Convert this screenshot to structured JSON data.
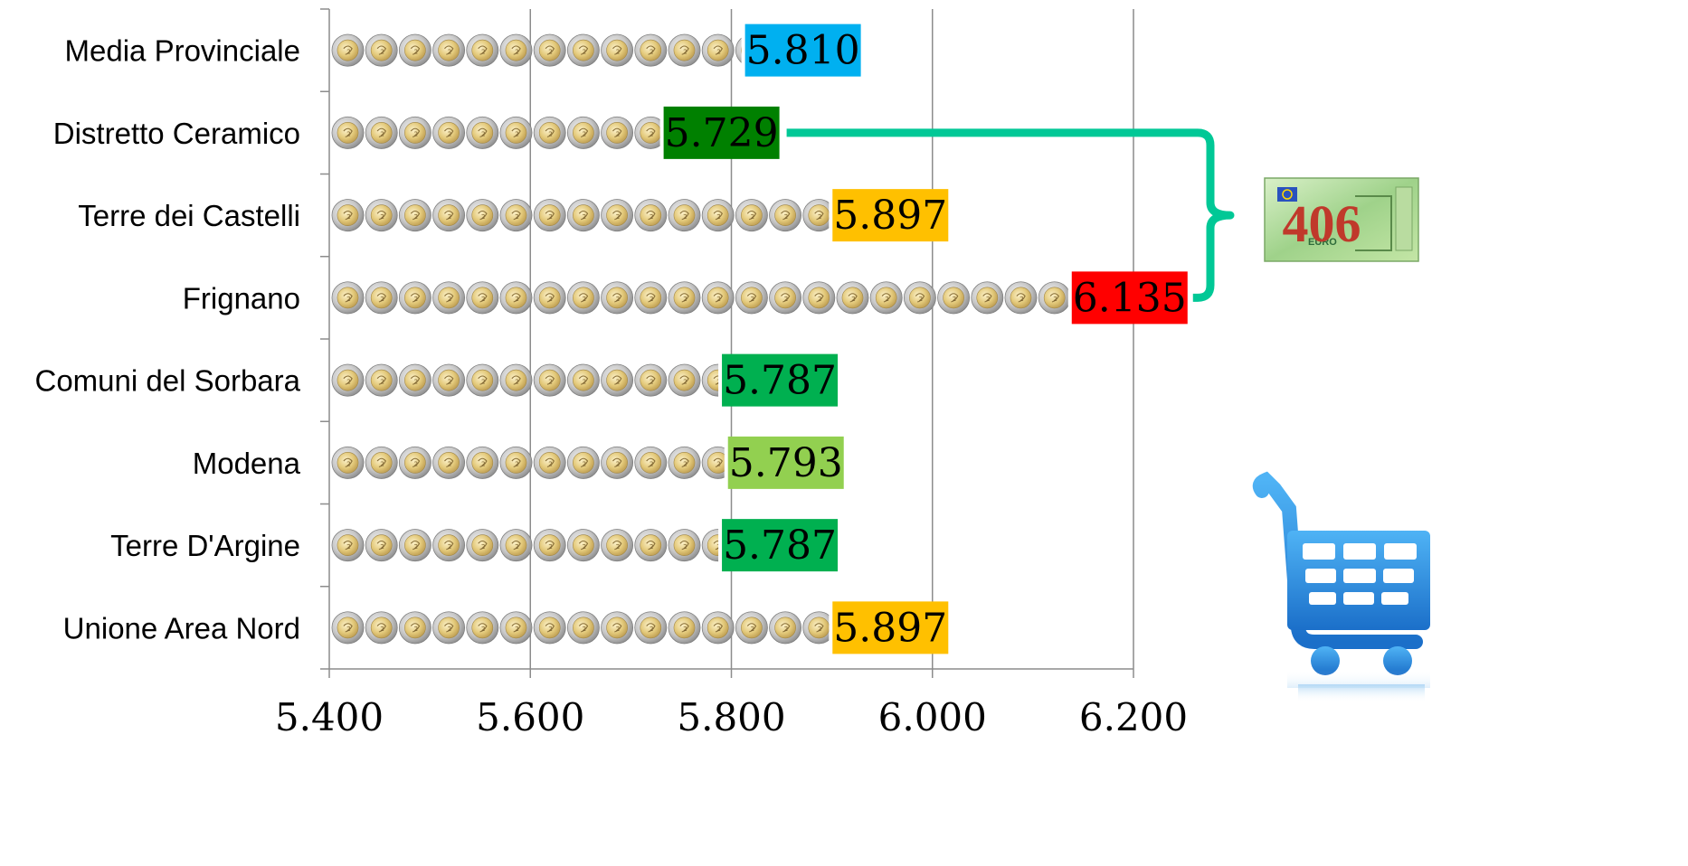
{
  "chart_data": {
    "type": "bar",
    "orientation": "horizontal",
    "categories": [
      "Media Provinciale",
      "Distretto Ceramico",
      "Terre dei Castelli",
      "Frignano",
      "Comuni del Sorbara",
      "Modena",
      "Terre D'Argine",
      "Unione Area Nord"
    ],
    "values": [
      5810,
      5729,
      5897,
      6135,
      5787,
      5793,
      5787,
      5897
    ],
    "value_labels": [
      "5.810",
      "5.729",
      "5.897",
      "6.135",
      "5.787",
      "5.793",
      "5.787",
      "5.897"
    ],
    "label_colors": [
      "#00b0f0",
      "#008000",
      "#ffc000",
      "#ff0000",
      "#00b050",
      "#92d050",
      "#00b050",
      "#ffc000"
    ],
    "xlim": [
      5400,
      6200
    ],
    "x_ticks": [
      5400,
      5600,
      5800,
      6000,
      6200
    ],
    "x_tick_labels": [
      "5.400",
      "5.600",
      "5.800",
      "6.000",
      "6.200"
    ],
    "grid": "vertical",
    "bar_style": "stacked-euro-coins",
    "annotation": {
      "type": "bracket",
      "from_category": "Distretto Ceramico",
      "to_category": "Frignano",
      "color": "#00c896",
      "label": "406",
      "label_icon": "euro-banknote-icon"
    },
    "decoration": "shopping-cart-icon"
  }
}
